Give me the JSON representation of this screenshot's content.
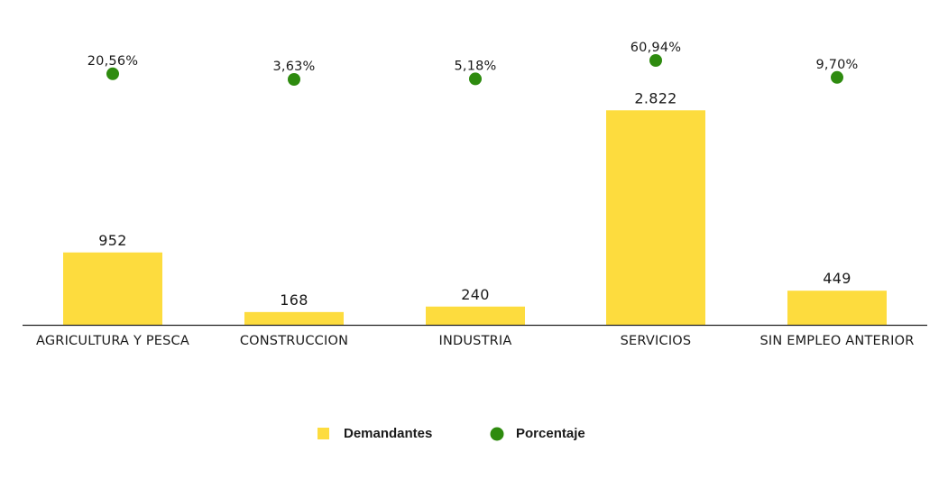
{
  "chart_data": {
    "type": "bar",
    "categories": [
      "AGRICULTURA Y PESCA",
      "CONSTRUCCION",
      "INDUSTRIA",
      "SERVICIOS",
      "SIN EMPLEO ANTERIOR"
    ],
    "series": [
      {
        "name": "Demandantes",
        "type": "bar",
        "values": [
          952,
          168,
          240,
          2822,
          449
        ],
        "labels": [
          "952",
          "168",
          "240",
          "2.822",
          "449"
        ],
        "color": "#fddc3e"
      },
      {
        "name": "Porcentaje",
        "type": "scatter",
        "values": [
          20.56,
          3.63,
          5.18,
          60.94,
          9.7
        ],
        "labels": [
          "20,56%",
          "3,63%",
          "5,18%",
          "60,94%",
          "9,70%"
        ],
        "color": "#2e8b0f"
      }
    ],
    "ylim_bars": [
      0,
      3300
    ],
    "ylim_percent": [
      0,
      100
    ],
    "title": "",
    "xlabel": "",
    "ylabel": "",
    "grid": false,
    "legend_position": "bottom-center"
  }
}
